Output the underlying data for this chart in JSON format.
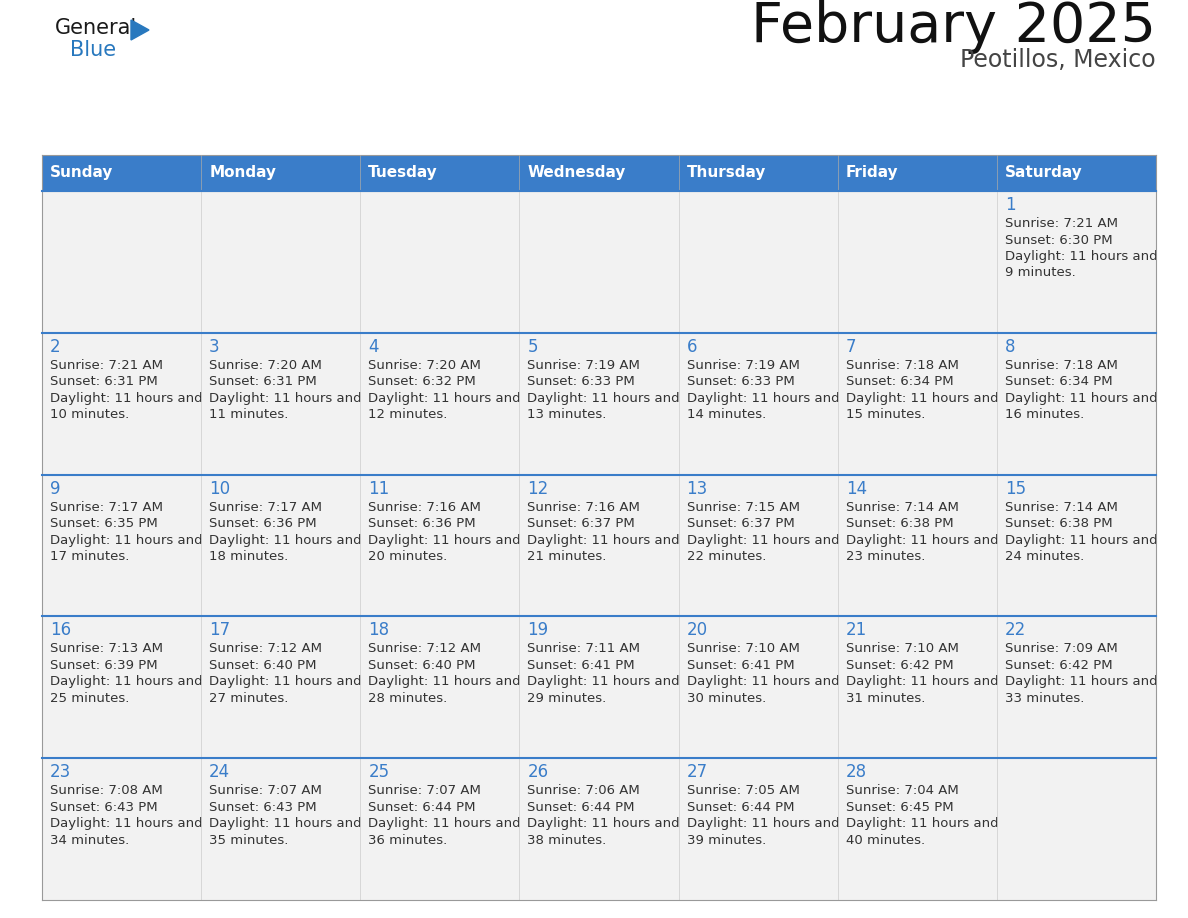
{
  "title": "February 2025",
  "subtitle": "Peotillos, Mexico",
  "days_of_week": [
    "Sunday",
    "Monday",
    "Tuesday",
    "Wednesday",
    "Thursday",
    "Friday",
    "Saturday"
  ],
  "header_bg": "#3A7DC9",
  "header_text": "#FFFFFF",
  "cell_bg_light": "#F2F2F2",
  "cell_bg_white": "#FFFFFF",
  "cell_border": "#BBBBBB",
  "row_sep_color": "#3A7DC9",
  "day_num_color": "#3A7DC9",
  "info_text_color": "#333333",
  "calendar_data": [
    [
      null,
      null,
      null,
      null,
      null,
      null,
      {
        "day": 1,
        "sunrise": "7:21 AM",
        "sunset": "6:30 PM",
        "daylight": "11 hours and 9 minutes."
      }
    ],
    [
      {
        "day": 2,
        "sunrise": "7:21 AM",
        "sunset": "6:31 PM",
        "daylight": "11 hours and 10 minutes."
      },
      {
        "day": 3,
        "sunrise": "7:20 AM",
        "sunset": "6:31 PM",
        "daylight": "11 hours and 11 minutes."
      },
      {
        "day": 4,
        "sunrise": "7:20 AM",
        "sunset": "6:32 PM",
        "daylight": "11 hours and 12 minutes."
      },
      {
        "day": 5,
        "sunrise": "7:19 AM",
        "sunset": "6:33 PM",
        "daylight": "11 hours and 13 minutes."
      },
      {
        "day": 6,
        "sunrise": "7:19 AM",
        "sunset": "6:33 PM",
        "daylight": "11 hours and 14 minutes."
      },
      {
        "day": 7,
        "sunrise": "7:18 AM",
        "sunset": "6:34 PM",
        "daylight": "11 hours and 15 minutes."
      },
      {
        "day": 8,
        "sunrise": "7:18 AM",
        "sunset": "6:34 PM",
        "daylight": "11 hours and 16 minutes."
      }
    ],
    [
      {
        "day": 9,
        "sunrise": "7:17 AM",
        "sunset": "6:35 PM",
        "daylight": "11 hours and 17 minutes."
      },
      {
        "day": 10,
        "sunrise": "7:17 AM",
        "sunset": "6:36 PM",
        "daylight": "11 hours and 18 minutes."
      },
      {
        "day": 11,
        "sunrise": "7:16 AM",
        "sunset": "6:36 PM",
        "daylight": "11 hours and 20 minutes."
      },
      {
        "day": 12,
        "sunrise": "7:16 AM",
        "sunset": "6:37 PM",
        "daylight": "11 hours and 21 minutes."
      },
      {
        "day": 13,
        "sunrise": "7:15 AM",
        "sunset": "6:37 PM",
        "daylight": "11 hours and 22 minutes."
      },
      {
        "day": 14,
        "sunrise": "7:14 AM",
        "sunset": "6:38 PM",
        "daylight": "11 hours and 23 minutes."
      },
      {
        "day": 15,
        "sunrise": "7:14 AM",
        "sunset": "6:38 PM",
        "daylight": "11 hours and 24 minutes."
      }
    ],
    [
      {
        "day": 16,
        "sunrise": "7:13 AM",
        "sunset": "6:39 PM",
        "daylight": "11 hours and 25 minutes."
      },
      {
        "day": 17,
        "sunrise": "7:12 AM",
        "sunset": "6:40 PM",
        "daylight": "11 hours and 27 minutes."
      },
      {
        "day": 18,
        "sunrise": "7:12 AM",
        "sunset": "6:40 PM",
        "daylight": "11 hours and 28 minutes."
      },
      {
        "day": 19,
        "sunrise": "7:11 AM",
        "sunset": "6:41 PM",
        "daylight": "11 hours and 29 minutes."
      },
      {
        "day": 20,
        "sunrise": "7:10 AM",
        "sunset": "6:41 PM",
        "daylight": "11 hours and 30 minutes."
      },
      {
        "day": 21,
        "sunrise": "7:10 AM",
        "sunset": "6:42 PM",
        "daylight": "11 hours and 31 minutes."
      },
      {
        "day": 22,
        "sunrise": "7:09 AM",
        "sunset": "6:42 PM",
        "daylight": "11 hours and 33 minutes."
      }
    ],
    [
      {
        "day": 23,
        "sunrise": "7:08 AM",
        "sunset": "6:43 PM",
        "daylight": "11 hours and 34 minutes."
      },
      {
        "day": 24,
        "sunrise": "7:07 AM",
        "sunset": "6:43 PM",
        "daylight": "11 hours and 35 minutes."
      },
      {
        "day": 25,
        "sunrise": "7:07 AM",
        "sunset": "6:44 PM",
        "daylight": "11 hours and 36 minutes."
      },
      {
        "day": 26,
        "sunrise": "7:06 AM",
        "sunset": "6:44 PM",
        "daylight": "11 hours and 38 minutes."
      },
      {
        "day": 27,
        "sunrise": "7:05 AM",
        "sunset": "6:44 PM",
        "daylight": "11 hours and 39 minutes."
      },
      {
        "day": 28,
        "sunrise": "7:04 AM",
        "sunset": "6:45 PM",
        "daylight": "11 hours and 40 minutes."
      },
      null
    ]
  ],
  "logo_general_color": "#1A1A1A",
  "logo_blue_color": "#2878BE",
  "logo_triangle_color": "#2878BE"
}
